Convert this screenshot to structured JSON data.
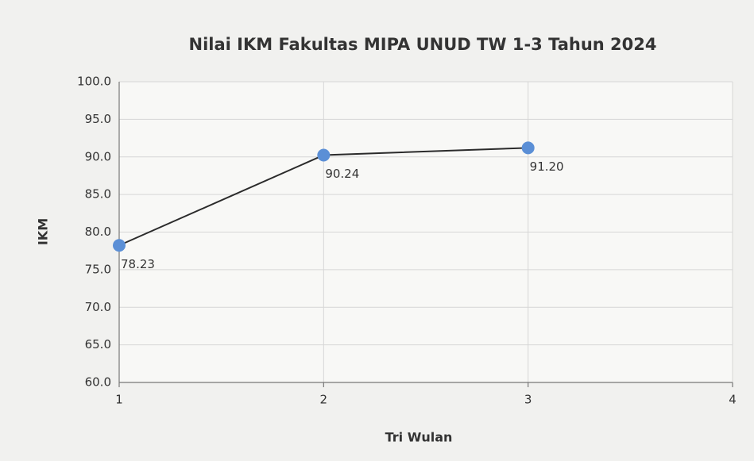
{
  "chart_data": {
    "type": "line",
    "title": "Nilai IKM Fakultas MIPA UNUD TW 1-3 Tahun 2024",
    "x_label": "Tri Wulan",
    "y_label": "IKM",
    "x": [
      1,
      2,
      3
    ],
    "values": [
      78.23,
      90.24,
      91.2
    ],
    "value_labels": [
      "78.23",
      "90.24",
      "91.20"
    ],
    "line_color": "#2b2b2b",
    "marker_color": "#5b8fd6",
    "xlim": [
      1,
      4
    ],
    "xticks": [
      1,
      2,
      3,
      4
    ],
    "ylim": [
      60,
      100
    ],
    "yticks": [
      {
        "value": 60,
        "label": "60.0"
      },
      {
        "value": 65,
        "label": "65.0"
      },
      {
        "value": 70,
        "label": "70.0"
      },
      {
        "value": 75,
        "label": "75.0"
      },
      {
        "value": 80,
        "label": "80.0"
      },
      {
        "value": 85,
        "label": "85.0"
      },
      {
        "value": 90,
        "label": "90.0"
      },
      {
        "value": 95,
        "label": "95.0"
      },
      {
        "value": 100,
        "label": "100.0"
      }
    ],
    "grid": true
  }
}
